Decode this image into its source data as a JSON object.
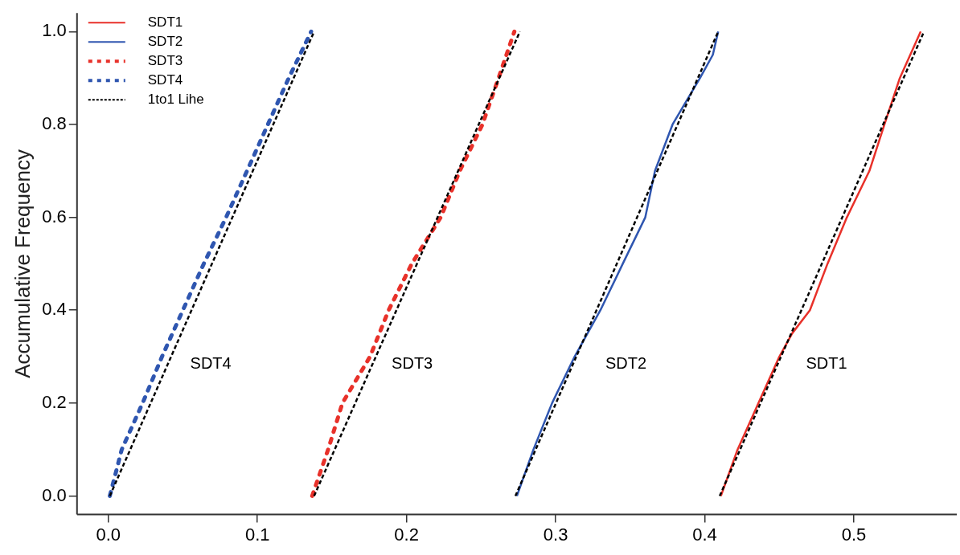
{
  "chart_data": {
    "type": "line",
    "ylabel": "Accumulative Frequency",
    "xlim": [
      -0.021,
      0.569
    ],
    "xticks": [
      {
        "value": 0,
        "label": "0.0"
      },
      0.1,
      0.2,
      0.3,
      0.4,
      0.5
    ],
    "ylim": [
      -0.04,
      1.04
    ],
    "yticks": [
      {
        "value": 0,
        "label": "0.0"
      },
      0.2,
      0.4,
      0.6,
      0.8,
      {
        "value": 1,
        "label": "1.0"
      }
    ],
    "grid": false,
    "legend": "top left",
    "series": [
      {
        "name": "SDT1",
        "color": "#e8312a",
        "line_style": "solid",
        "x": [
          0.4108,
          0.422,
          0.436,
          0.45,
          0.4586,
          0.4705,
          0.4823,
          0.4953,
          0.5104,
          0.5205,
          0.5308,
          0.5448
        ],
        "values": [
          0,
          0.1,
          0.2,
          0.3,
          0.35,
          0.4,
          0.5,
          0.6,
          0.7,
          0.8,
          0.9,
          1
        ]
      },
      {
        "name": "SDT2",
        "color": "#2f56b0",
        "line_style": "solid",
        "x": [
          0.274,
          0.2851,
          0.2976,
          0.3127,
          0.33,
          0.345,
          0.3601,
          0.3666,
          0.3784,
          0.3968,
          0.4054,
          0.409
        ],
        "values": [
          0,
          0.1,
          0.2,
          0.3,
          0.4,
          0.5,
          0.6,
          0.7,
          0.8,
          0.9,
          0.95,
          1
        ]
      },
      {
        "name": "SDT3",
        "color": "#e8312a",
        "line_style": "dotted",
        "x": [
          0.1367,
          0.1399,
          0.1474,
          0.157,
          0.1755,
          0.188,
          0.2035,
          0.2229,
          0.2357,
          0.2509,
          0.2617,
          0.2723
        ],
        "values": [
          0,
          0.03,
          0.1,
          0.2,
          0.3,
          0.4,
          0.5,
          0.6,
          0.7,
          0.8,
          0.9,
          1
        ]
      },
      {
        "name": "SDT4",
        "color": "#2f56b0",
        "line_style": "dotted",
        "x": [
          0.001,
          0.009,
          0.023,
          0.036,
          0.05,
          0.064,
          0.079,
          0.093,
          0.107,
          0.121,
          0.136
        ],
        "values": [
          0,
          0.1,
          0.2,
          0.3,
          0.4,
          0.5,
          0.6,
          0.7,
          0.8,
          0.9,
          1
        ]
      },
      {
        "name": "1to1 Lihe",
        "color": "#000000",
        "line_style": "dashed",
        "x": [
          0.001,
          0.138
        ],
        "values": [
          0,
          1
        ]
      },
      {
        "color": "#000000",
        "line_style": "dashed",
        "x": [
          0.138,
          0.276
        ],
        "values": [
          0,
          1
        ]
      },
      {
        "color": "#000000",
        "line_style": "dashed",
        "x": [
          0.273,
          0.409
        ],
        "values": [
          0,
          1
        ]
      },
      {
        "color": "#000000",
        "line_style": "dashed",
        "x": [
          0.41,
          0.547
        ],
        "values": [
          0,
          1
        ]
      }
    ],
    "annotations": [
      "SDT4",
      "SDT3",
      "SDT2",
      "SDT1"
    ]
  }
}
